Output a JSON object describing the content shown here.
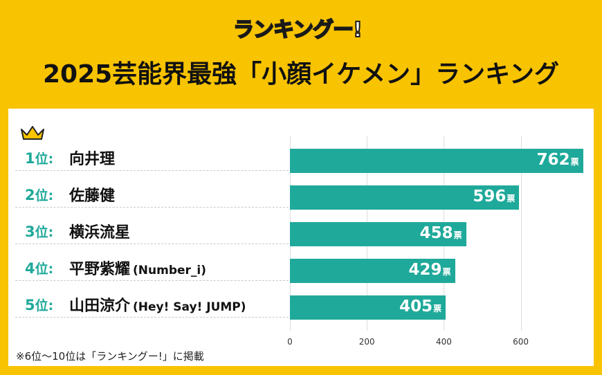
{
  "brand": {
    "logo_text": "ランキングー!"
  },
  "title": "2025芸能界最強「小顔イケメン」ランキング",
  "colors": {
    "background": "#F8C300",
    "accent": "#1FA99A",
    "panel": "#FFFFFF",
    "crown": "#F8C300"
  },
  "rows": [
    {
      "rank_num": "1",
      "rank_suffix": "位",
      "colon": ":",
      "name": "向井理",
      "sub": "",
      "value_text": "762",
      "unit": "票"
    },
    {
      "rank_num": "2",
      "rank_suffix": "位",
      "colon": ":",
      "name": "佐藤健",
      "sub": "",
      "value_text": "596",
      "unit": "票"
    },
    {
      "rank_num": "3",
      "rank_suffix": "位",
      "colon": ":",
      "name": "横浜流星",
      "sub": "",
      "value_text": "458",
      "unit": "票"
    },
    {
      "rank_num": "4",
      "rank_suffix": "位",
      "colon": ":",
      "name": "平野紫耀",
      "sub": "(Number_i)",
      "value_text": "429",
      "unit": "票"
    },
    {
      "rank_num": "5",
      "rank_suffix": "位",
      "colon": ":",
      "name": "山田涼介",
      "sub": "(Hey! Say! JUMP)",
      "value_text": "405",
      "unit": "票"
    }
  ],
  "footnote": "※6位〜10位は「ランキングー!」に掲載",
  "chart_data": {
    "type": "bar",
    "orientation": "horizontal",
    "categories": [
      "向井理",
      "佐藤健",
      "横浜流星",
      "平野紫耀 (Number_i)",
      "山田涼介 (Hey! Say! JUMP)"
    ],
    "values": [
      762,
      596,
      458,
      429,
      405
    ],
    "value_unit": "票",
    "x_ticks": [
      "0",
      "200",
      "400",
      "600"
    ],
    "xlim": [
      0,
      770
    ],
    "grid": true
  }
}
